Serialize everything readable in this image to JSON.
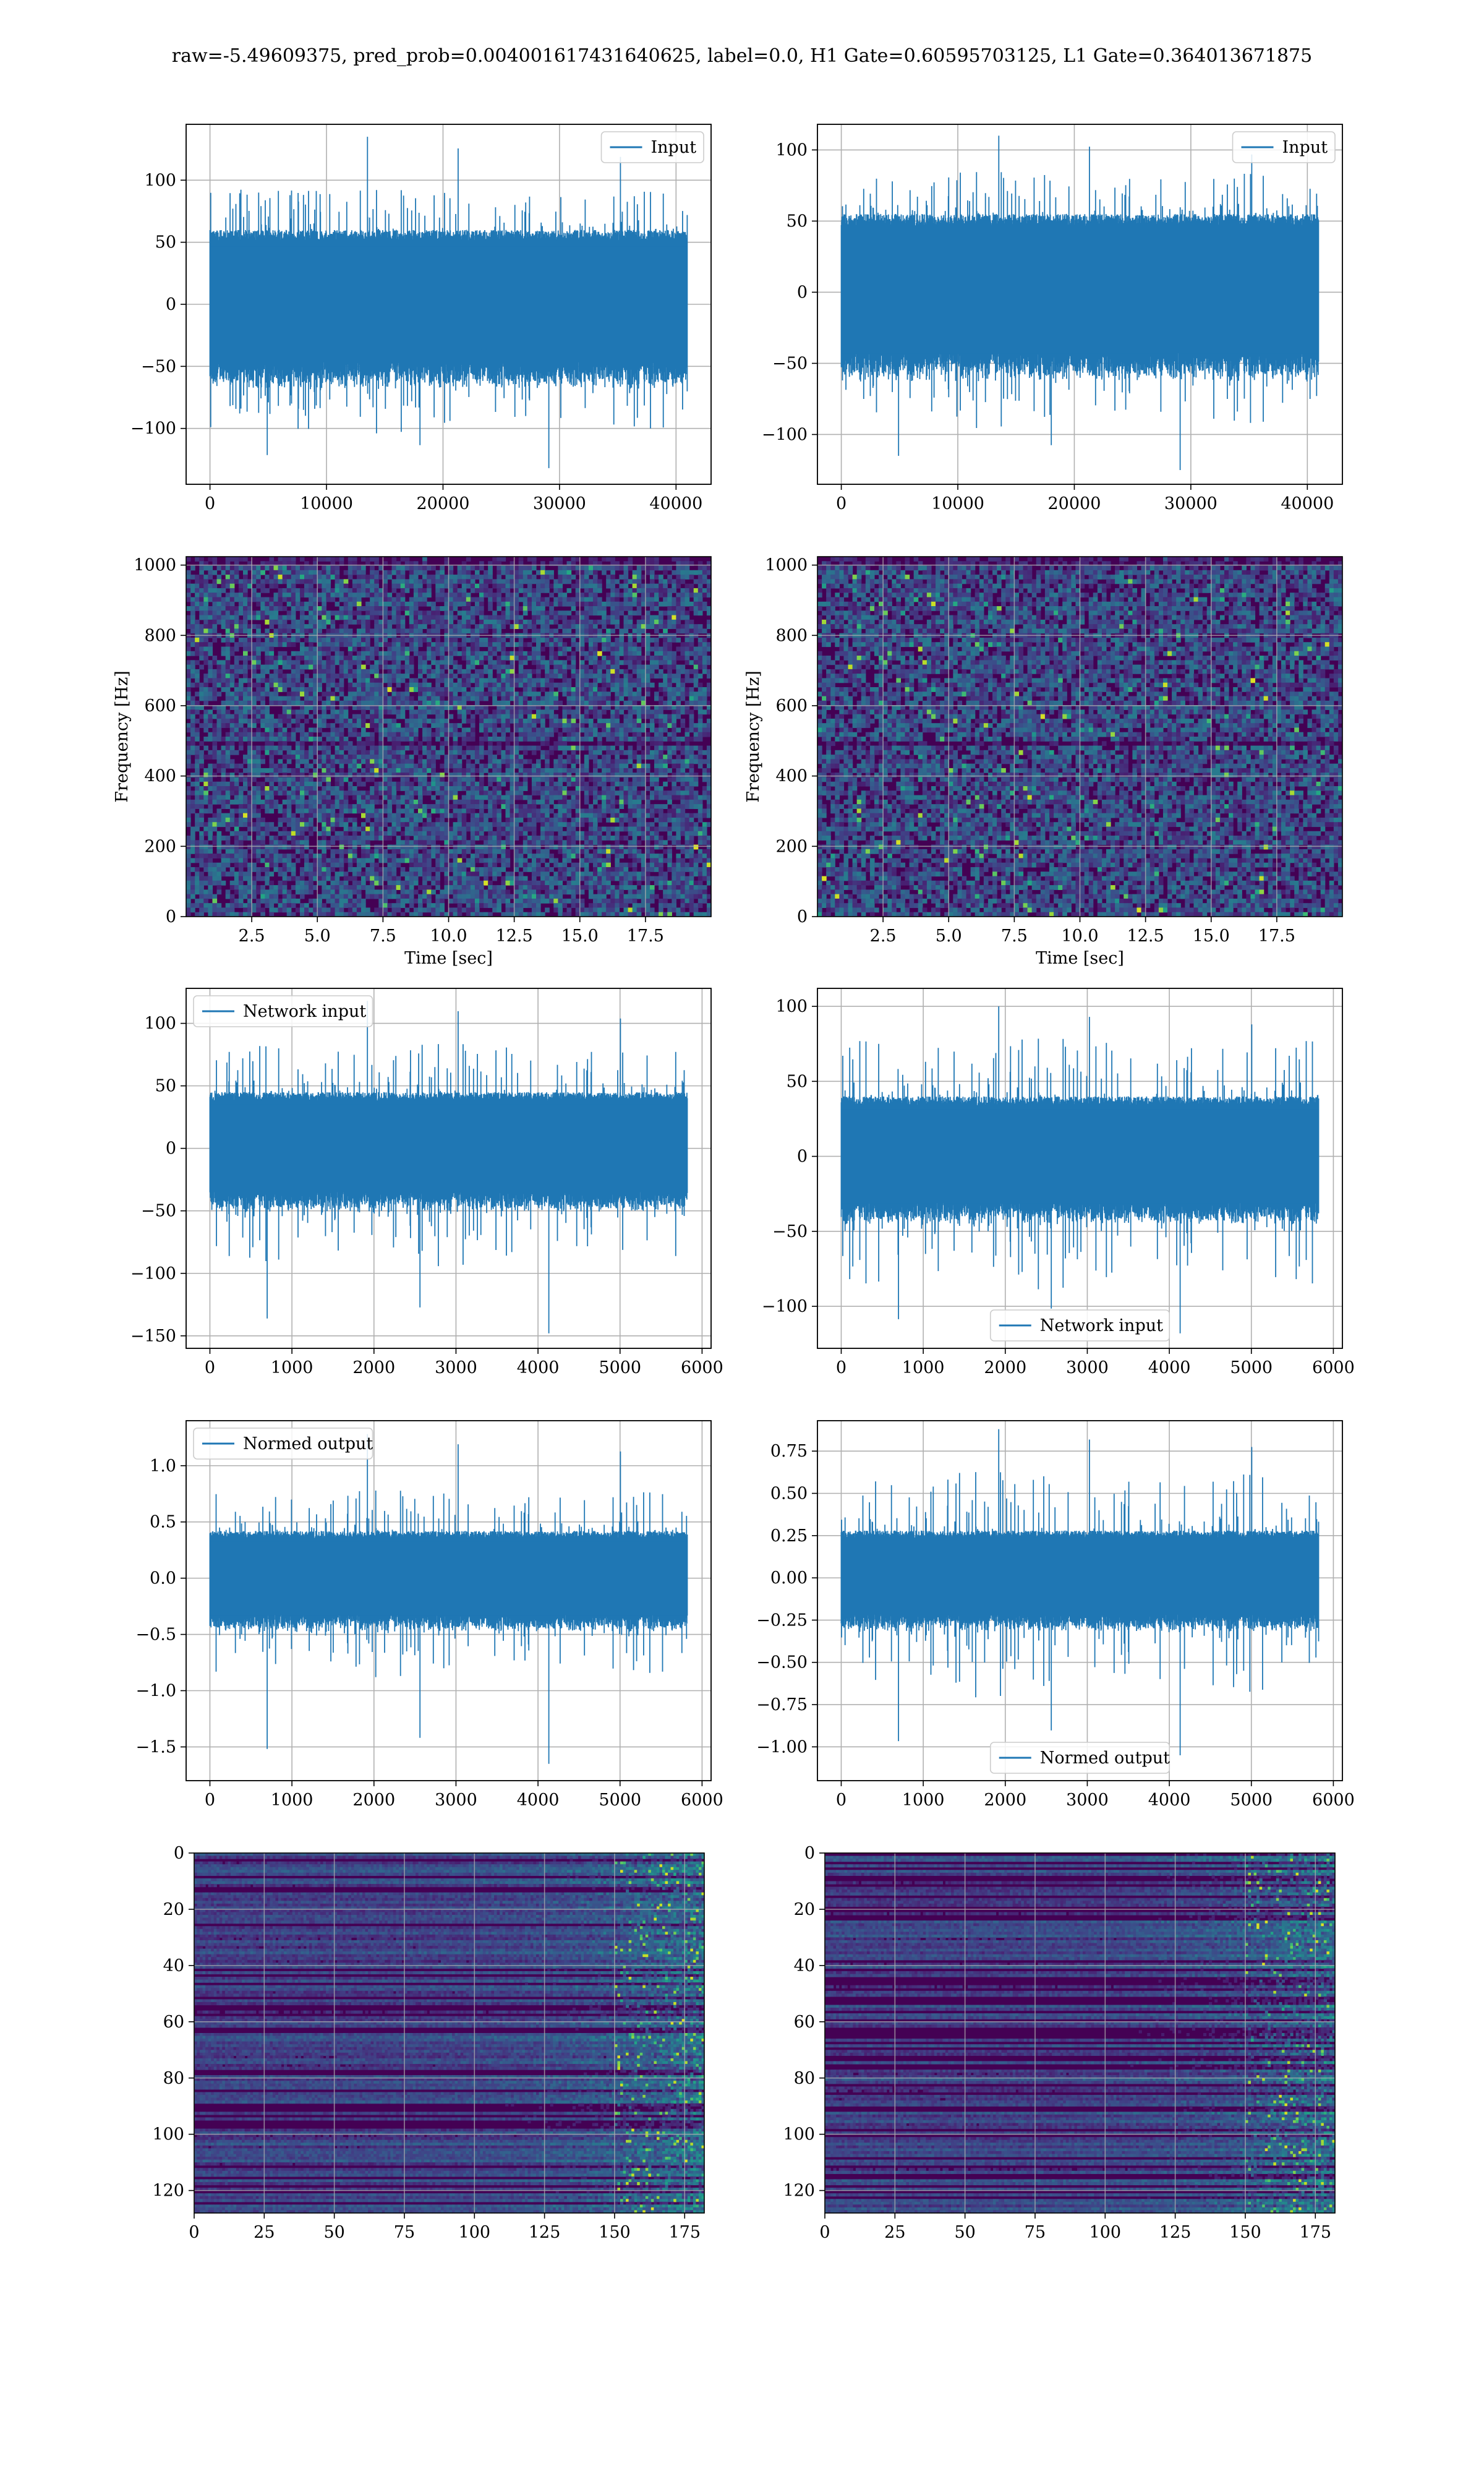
{
  "suptitle": "raw=-5.49609375, pred_prob=0.004001617431640625, label=0.0, H1 Gate=0.60595703125, L1 Gate=0.364013671875",
  "colors": {
    "line": "#1f77b4",
    "grid": "#b0b0b0",
    "viridis_low": "#440154",
    "viridis_mid": "#21918c",
    "viridis_high": "#fde725"
  },
  "chart_data": [
    {
      "id": "r0c0",
      "type": "line",
      "legend": [
        "Input"
      ],
      "legend_loc": "upper right",
      "xlim": [
        -2048,
        43008
      ],
      "ylim": [
        -145,
        145
      ],
      "xticks": [
        0,
        10000,
        20000,
        30000,
        40000
      ],
      "yticks": [
        -100,
        -50,
        0,
        50,
        100
      ],
      "x_extent": [
        0,
        40960
      ],
      "envelope": {
        "core_amplitude": 60,
        "typical_peak": 85,
        "max": 135,
        "min": -132
      },
      "grid": true
    },
    {
      "id": "r0c1",
      "type": "line",
      "legend": [
        "Input"
      ],
      "legend_loc": "upper right",
      "xlim": [
        -2048,
        43008
      ],
      "ylim": [
        -135,
        118
      ],
      "xticks": [
        0,
        10000,
        20000,
        30000,
        40000
      ],
      "yticks": [
        -100,
        -50,
        0,
        50,
        100
      ],
      "x_extent": [
        0,
        40960
      ],
      "envelope": {
        "core_amplitude": 55,
        "typical_peak": 78,
        "max": 110,
        "min": -125
      },
      "grid": true
    },
    {
      "id": "r1c0",
      "type": "heatmap",
      "xlabel": "Time [sec]",
      "ylabel": "Frequency [Hz]",
      "xlim": [
        0,
        20
      ],
      "ylim": [
        0,
        1024
      ],
      "xticks": [
        2.5,
        5.0,
        7.5,
        10.0,
        12.5,
        15.0,
        17.5
      ],
      "yticks": [
        0,
        200,
        400,
        600,
        800,
        1000
      ],
      "colormap": "viridis",
      "grid": true
    },
    {
      "id": "r1c1",
      "type": "heatmap",
      "xlabel": "Time [sec]",
      "ylabel": "Frequency [Hz]",
      "xlim": [
        0,
        20
      ],
      "ylim": [
        0,
        1024
      ],
      "xticks": [
        2.5,
        5.0,
        7.5,
        10.0,
        12.5,
        15.0,
        17.5
      ],
      "yticks": [
        0,
        200,
        400,
        600,
        800,
        1000
      ],
      "colormap": "viridis",
      "grid": true
    },
    {
      "id": "r2c0",
      "type": "line",
      "legend": [
        "Network input"
      ],
      "legend_loc": "upper left",
      "xlim": [
        -290,
        6110
      ],
      "ylim": [
        -160,
        128
      ],
      "xticks": [
        0,
        1000,
        2000,
        3000,
        4000,
        5000,
        6000
      ],
      "yticks": [
        -150,
        -100,
        -50,
        0,
        50,
        100
      ],
      "x_extent": [
        0,
        5820
      ],
      "envelope": {
        "core_amplitude": 45,
        "typical_peak": 75,
        "max": 118,
        "min": -148
      },
      "grid": true
    },
    {
      "id": "r2c1",
      "type": "line",
      "legend": [
        "Network input"
      ],
      "legend_loc": "lower center",
      "xlim": [
        -290,
        6110
      ],
      "ylim": [
        -128,
        112
      ],
      "xticks": [
        0,
        1000,
        2000,
        3000,
        4000,
        5000,
        6000
      ],
      "yticks": [
        -100,
        -50,
        0,
        50,
        100
      ],
      "x_extent": [
        0,
        5820
      ],
      "envelope": {
        "core_amplitude": 40,
        "typical_peak": 70,
        "max": 100,
        "min": -118
      },
      "grid": true
    },
    {
      "id": "r3c0",
      "type": "line",
      "legend": [
        "Normed output"
      ],
      "legend_loc": "upper left",
      "xlim": [
        -290,
        6110
      ],
      "ylim": [
        -1.8,
        1.4
      ],
      "xticks": [
        0,
        1000,
        2000,
        3000,
        4000,
        5000,
        6000
      ],
      "yticks": [
        -1.5,
        -1.0,
        -0.5,
        0.0,
        0.5,
        1.0
      ],
      "x_extent": [
        0,
        5820
      ],
      "envelope": {
        "core_amplitude": 0.42,
        "typical_peak": 0.7,
        "max": 1.28,
        "min": -1.65
      },
      "grid": true
    },
    {
      "id": "r3c1",
      "type": "line",
      "legend": [
        "Normed output"
      ],
      "legend_loc": "lower center",
      "xlim": [
        -290,
        6110
      ],
      "ylim": [
        -1.2,
        0.93
      ],
      "xticks": [
        0,
        1000,
        2000,
        3000,
        4000,
        5000,
        6000
      ],
      "yticks": [
        -1.0,
        -0.75,
        -0.5,
        -0.25,
        0.0,
        0.25,
        0.5,
        0.75
      ],
      "x_extent": [
        0,
        5820
      ],
      "envelope": {
        "core_amplitude": 0.28,
        "typical_peak": 0.55,
        "max": 0.88,
        "min": -1.05
      },
      "grid": true
    },
    {
      "id": "r4c0",
      "type": "heatmap",
      "xlim": [
        0,
        182
      ],
      "ylim": [
        128,
        0
      ],
      "xticks": [
        0,
        25,
        50,
        75,
        100,
        125,
        150,
        175
      ],
      "yticks": [
        0,
        20,
        40,
        60,
        80,
        100,
        120
      ],
      "y_inverted": true,
      "colormap": "viridis",
      "grid": true
    },
    {
      "id": "r4c1",
      "type": "heatmap",
      "xlim": [
        0,
        182
      ],
      "ylim": [
        128,
        0
      ],
      "xticks": [
        0,
        25,
        50,
        75,
        100,
        125,
        150,
        175
      ],
      "yticks": [
        0,
        20,
        40,
        60,
        80,
        100,
        120
      ],
      "y_inverted": true,
      "colormap": "viridis",
      "grid": true
    }
  ]
}
